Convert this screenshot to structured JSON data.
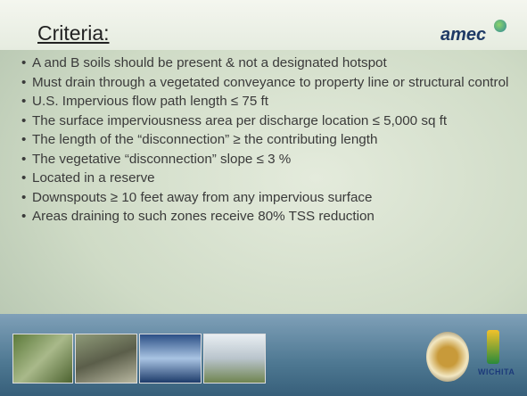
{
  "header": {
    "title": "Criteria:",
    "logo": "amec"
  },
  "bullets": [
    "A and B soils should be present & not a designated hotspot",
    "Must drain through a vegetated conveyance to property line or structural control",
    "U.S. Impervious flow path length ≤ 75 ft",
    "The surface imperviousness area per discharge location ≤ 5,000 sq ft",
    "The length of the “disconnection” ≥ the contributing length",
    "The vegetative “disconnection” slope ≤ 3 %",
    "Located in a reserve",
    "Downspouts ≥ 10 feet away from any impervious surface",
    "Areas draining to such zones receive 80% TSS reduction"
  ],
  "footer": {
    "city_logo": "WICHITA"
  }
}
